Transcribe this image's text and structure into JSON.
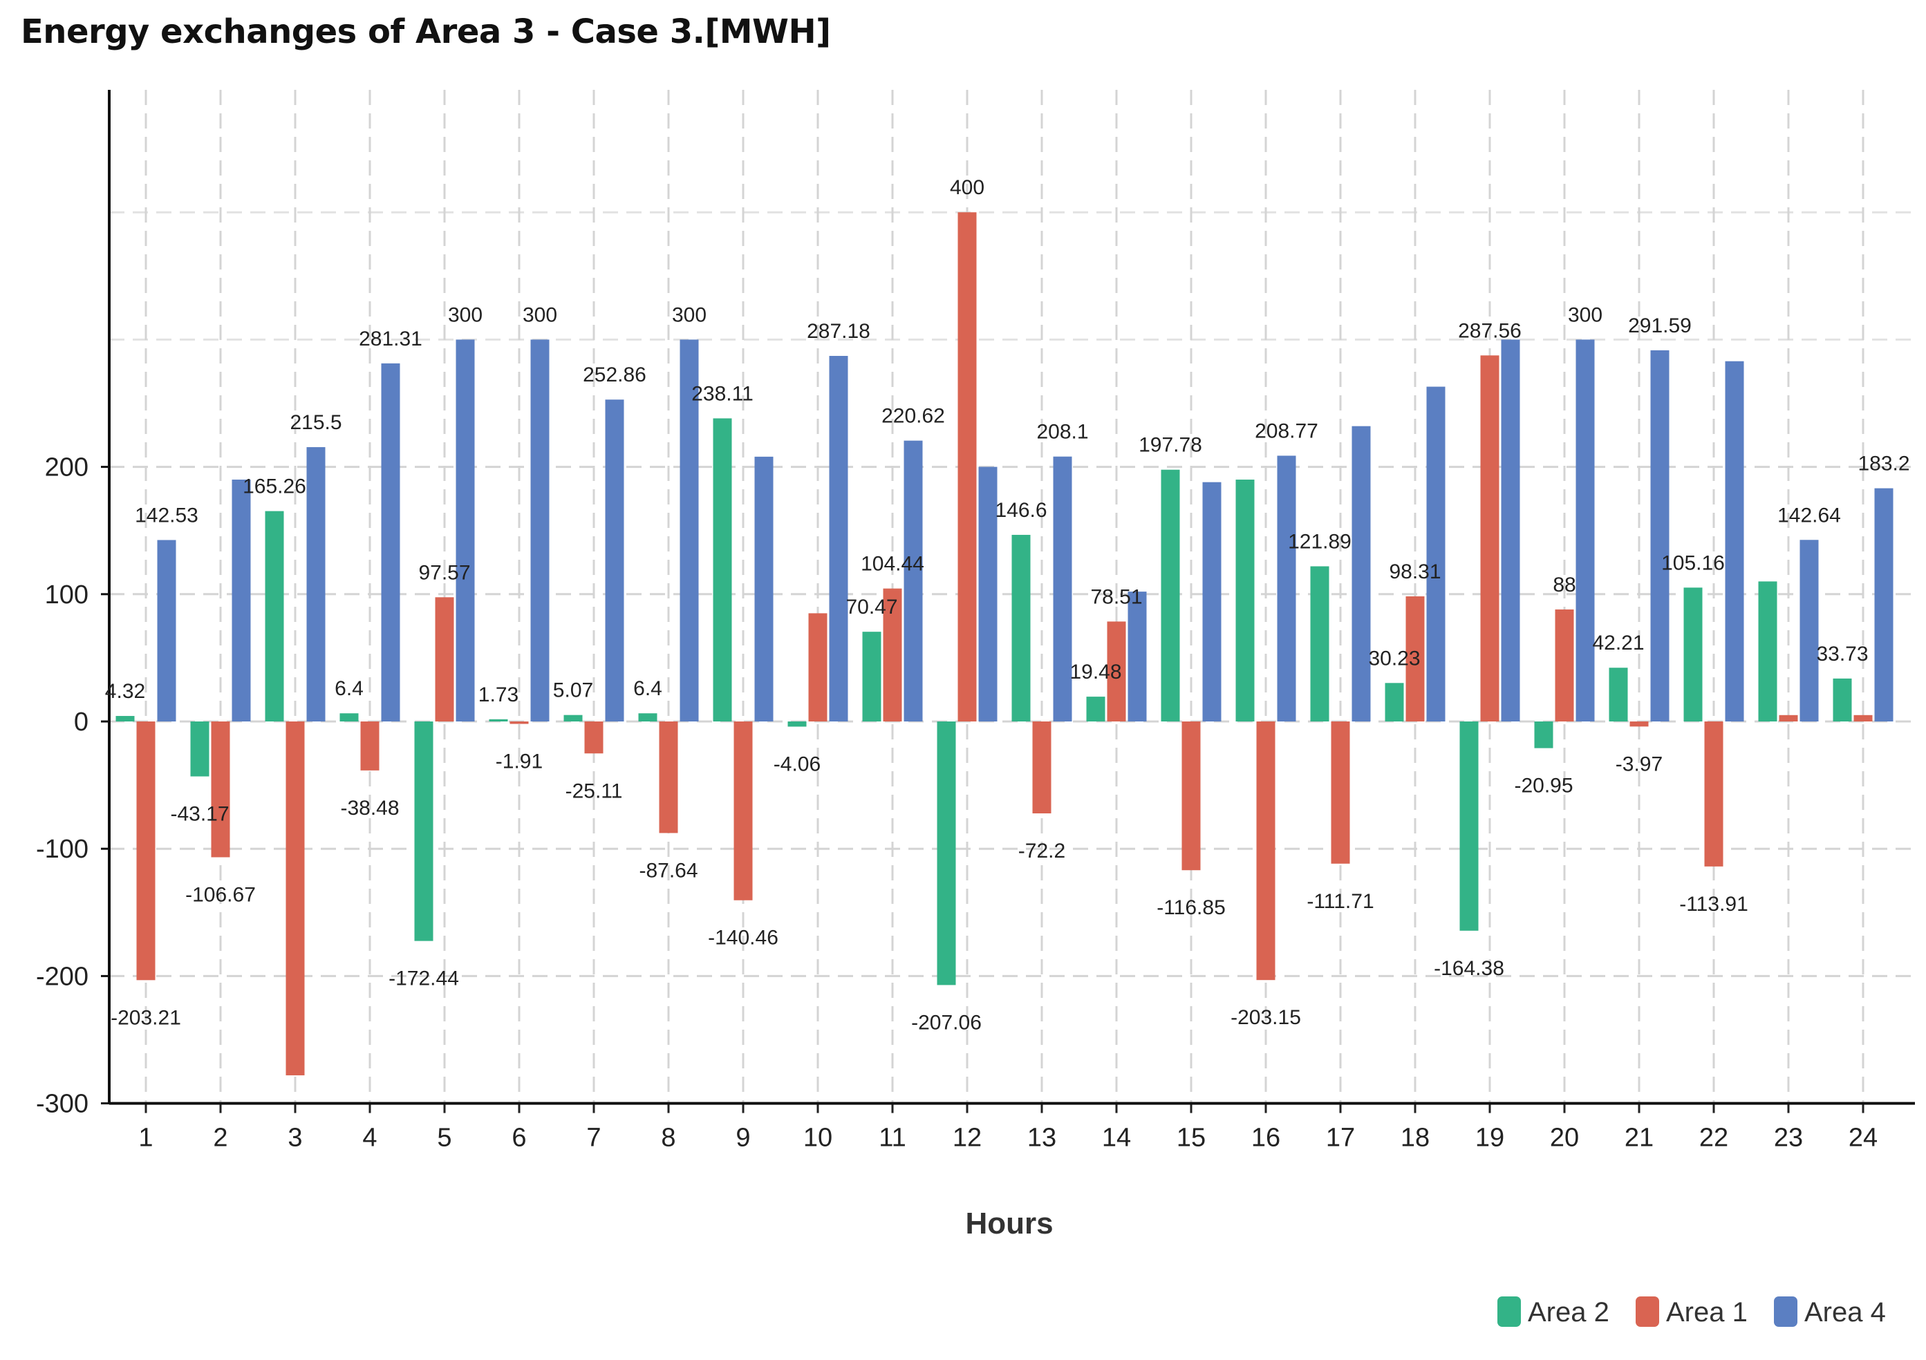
{
  "chart_data": {
    "type": "bar",
    "title": "Energy exchanges of Area 3 - Case 3.[MWH]",
    "xlabel": "Hours",
    "ylabel": "",
    "ylim": [
      -300,
      500
    ],
    "yticks": [
      -300,
      -200,
      -100,
      0,
      100,
      200
    ],
    "grid": true,
    "legend_position": "bottom-right",
    "categories": [
      "1",
      "2",
      "3",
      "4",
      "5",
      "6",
      "7",
      "8",
      "9",
      "10",
      "11",
      "12",
      "13",
      "14",
      "15",
      "16",
      "17",
      "18",
      "19",
      "20",
      "21",
      "22",
      "23",
      "24"
    ],
    "series": [
      {
        "name": "Area 2",
        "color": "#33b387",
        "values": [
          4.32,
          -43.17,
          165.26,
          6.4,
          -172.44,
          1.73,
          5.07,
          6.4,
          238.11,
          -4.06,
          70.47,
          -207.06,
          146.6,
          19.48,
          197.78,
          190,
          121.89,
          30.23,
          -164.38,
          -20.95,
          42.21,
          105.16,
          110,
          33.73
        ],
        "labels": [
          "4.32",
          "-43.17",
          "165.26",
          "6.4",
          "-172.44",
          "1.73",
          "5.07",
          "6.4",
          "238.11",
          "-4.06",
          "70.47",
          "-207.06",
          "146.6",
          "19.48",
          "197.78",
          "",
          "121.89",
          "30.23",
          "-164.38",
          "-20.95",
          "42.21",
          "105.16",
          "",
          "33.73"
        ]
      },
      {
        "name": "Area 1",
        "color": "#d96452",
        "values": [
          -203.21,
          -106.67,
          -278,
          -38.48,
          97.57,
          -1.91,
          -25.11,
          -87.64,
          -140.46,
          85,
          104.44,
          400,
          -72.2,
          78.51,
          -116.85,
          -203.15,
          -111.71,
          98.31,
          287.56,
          88,
          -3.97,
          -113.91,
          5,
          5
        ],
        "labels": [
          "-203.21",
          "-106.67",
          "",
          "-38.48",
          "97.57",
          "-1.91",
          "-25.11",
          "-87.64",
          "-140.46",
          "",
          "104.44",
          "400",
          "-72.2",
          "78.51",
          "-116.85",
          "-203.15",
          "-111.71",
          "98.31",
          "287.56",
          "88",
          "-3.97",
          "-113.91",
          "",
          ""
        ]
      },
      {
        "name": "Area 4",
        "color": "#5b7fc2",
        "values": [
          142.53,
          190,
          215.5,
          281.31,
          300,
          300,
          252.86,
          300,
          208,
          287.18,
          220.62,
          200,
          208.1,
          102,
          188,
          208.77,
          232,
          263,
          300,
          300,
          291.59,
          283,
          142.64,
          183.2
        ],
        "labels": [
          "142.53",
          "",
          "215.5",
          "281.31",
          "300",
          "300",
          "252.86",
          "300",
          "",
          "287.18",
          "220.62",
          "",
          "208.1",
          "",
          "",
          "208.77",
          "",
          "",
          "",
          "300",
          "291.59",
          "",
          "142.64",
          "183.2"
        ]
      }
    ]
  }
}
